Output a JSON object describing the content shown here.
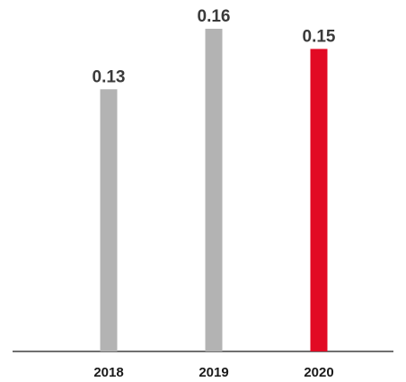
{
  "chart_data": {
    "type": "bar",
    "categories": [
      "2018",
      "2019",
      "2020"
    ],
    "values": [
      0.13,
      0.16,
      0.15
    ],
    "value_labels": [
      "0.13",
      "0.16",
      "0.15"
    ],
    "title": "",
    "xlabel": "",
    "ylabel": "",
    "ylim": [
      0,
      0.16
    ],
    "grid": false,
    "legend": "none",
    "colors": {
      "default_bar": "#b3b3b3",
      "highlight_bar": "#e20a24",
      "highlight_category": "2020",
      "axis": "#1a1a1a"
    }
  }
}
